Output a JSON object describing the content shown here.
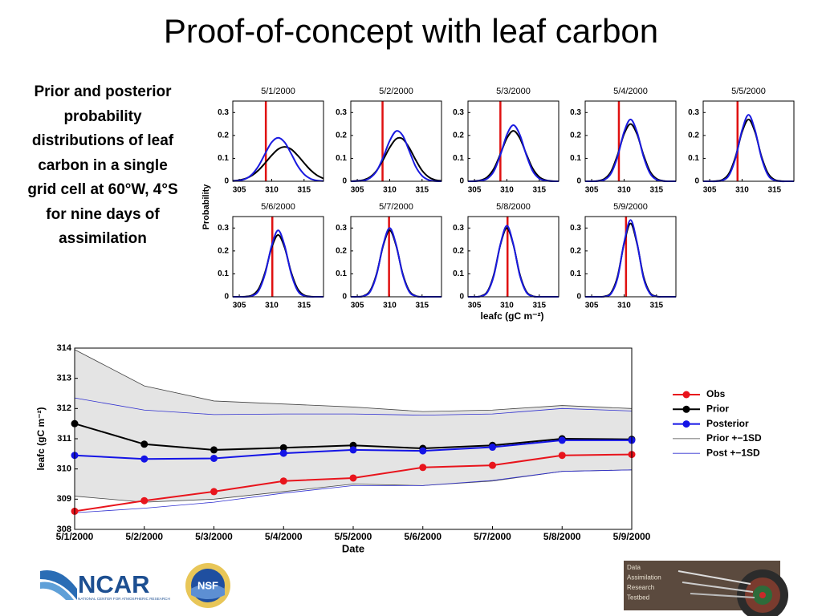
{
  "title": "Proof-of-concept with leaf carbon",
  "description": "Prior and posterior probability distributions of leaf carbon in a single grid cell at 60°W, 4°S for nine days of assimilation",
  "logos": {
    "ncar": "NCAR",
    "ncar_subtitle": "NATIONAL CENTER FOR ATMOSPHERIC RESEARCH",
    "nsf": "NSF",
    "dart": [
      "Data",
      "Assimilation",
      "Research",
      "Testbed"
    ]
  },
  "chart_data": [
    {
      "type": "density-grid",
      "ylabel": "Probability",
      "xlabel": "leafc (gC m⁻²)",
      "x": [
        304,
        305,
        306,
        307,
        308,
        309,
        310,
        311,
        312,
        313,
        314,
        315,
        316,
        317,
        318
      ],
      "xlim": [
        304,
        318
      ],
      "ylim": [
        0,
        0.35
      ],
      "xticks": [
        305,
        310,
        315
      ],
      "yticks": [
        0,
        0.1,
        0.2,
        0.3
      ],
      "curve_colors": [
        "#000000",
        "#1a1ae0"
      ],
      "obs_color": "#e01010",
      "panels": [
        {
          "title": "5/1/2000",
          "obs": 309.1,
          "curves": [
            [
              0.002,
              0.005,
              0.012,
              0.026,
              0.049,
              0.08,
              0.113,
              0.14,
              0.15,
              0.14,
              0.113,
              0.08,
              0.049,
              0.026,
              0.012
            ],
            [
              0.001,
              0.003,
              0.011,
              0.031,
              0.068,
              0.121,
              0.17,
              0.19,
              0.17,
              0.121,
              0.068,
              0.031,
              0.011,
              0.003,
              0.001
            ]
          ]
        },
        {
          "title": "5/2/2000",
          "obs": 308.9,
          "curves": [
            [
              0,
              0.002,
              0.006,
              0.019,
              0.047,
              0.094,
              0.147,
              0.185,
              0.185,
              0.147,
              0.094,
              0.047,
              0.019,
              0.006,
              0.002
            ],
            [
              0,
              0.001,
              0.003,
              0.015,
              0.045,
              0.105,
              0.176,
              0.219,
              0.2,
              0.134,
              0.065,
              0.024,
              0.006,
              0.001,
              0
            ]
          ]
        },
        {
          "title": "5/3/2000",
          "obs": 309,
          "curves": [
            [
              0,
              0.001,
              0.005,
              0.019,
              0.055,
              0.119,
              0.188,
              0.22,
              0.188,
              0.119,
              0.055,
              0.019,
              0.005,
              0.001,
              0
            ],
            [
              0,
              0,
              0.003,
              0.012,
              0.044,
              0.115,
              0.203,
              0.245,
              0.203,
              0.115,
              0.044,
              0.012,
              0.003,
              0,
              0
            ]
          ]
        },
        {
          "title": "5/4/2000",
          "obs": 309.2,
          "curves": [
            [
              0,
              0,
              0.002,
              0.011,
              0.043,
              0.115,
              0.206,
              0.25,
              0.206,
              0.115,
              0.043,
              0.011,
              0.002,
              0,
              0
            ],
            [
              0,
              0,
              0.001,
              0.007,
              0.035,
              0.108,
              0.215,
              0.27,
              0.215,
              0.108,
              0.035,
              0.007,
              0.001,
              0,
              0
            ]
          ]
        },
        {
          "title": "5/5/2000",
          "obs": 309.3,
          "curves": [
            [
              0,
              0,
              0.001,
              0.007,
              0.035,
              0.108,
              0.215,
              0.27,
              0.215,
              0.108,
              0.035,
              0.007,
              0.001,
              0,
              0
            ],
            [
              0,
              0,
              0,
              0.004,
              0.027,
              0.102,
              0.223,
              0.29,
              0.223,
              0.102,
              0.027,
              0.004,
              0,
              0,
              0
            ]
          ]
        },
        {
          "title": "5/6/2000",
          "obs": 310.1,
          "curves": [
            [
              0,
              0,
              0.001,
              0.007,
              0.035,
              0.108,
              0.215,
              0.27,
              0.215,
              0.108,
              0.035,
              0.007,
              0.001,
              0,
              0
            ],
            [
              0,
              0,
              0,
              0.004,
              0.027,
              0.102,
              0.223,
              0.29,
              0.223,
              0.102,
              0.027,
              0.004,
              0,
              0,
              0
            ]
          ]
        },
        {
          "title": "5/7/2000",
          "obs": 309.9,
          "curves": [
            [
              0,
              0,
              0.004,
              0.027,
              0.102,
              0.223,
              0.29,
              0.223,
              0.102,
              0.027,
              0.004,
              0,
              0,
              0,
              0
            ],
            [
              0,
              0,
              0.003,
              0.023,
              0.098,
              0.227,
              0.3,
              0.227,
              0.098,
              0.023,
              0.003,
              0,
              0,
              0,
              0
            ]
          ]
        },
        {
          "title": "5/8/2000",
          "obs": 310.1,
          "curves": [
            [
              0,
              0,
              0.003,
              0.023,
              0.098,
              0.227,
              0.3,
              0.227,
              0.098,
              0.023,
              0.003,
              0,
              0,
              0,
              0
            ],
            [
              0,
              0,
              0.002,
              0.02,
              0.093,
              0.229,
              0.31,
              0.229,
              0.093,
              0.02,
              0.002,
              0,
              0,
              0,
              0
            ]
          ]
        },
        {
          "title": "5/9/2000",
          "obs": 310.3,
          "curves": [
            [
              0,
              0,
              0,
              0.002,
              0.018,
              0.089,
              0.232,
              0.32,
              0.232,
              0.089,
              0.018,
              0.002,
              0,
              0,
              0
            ],
            [
              0,
              0,
              0,
              0.001,
              0.014,
              0.082,
              0.236,
              0.335,
              0.236,
              0.082,
              0.014,
              0.001,
              0,
              0,
              0
            ]
          ]
        }
      ]
    },
    {
      "type": "line",
      "xlabel": "Date",
      "ylabel": "leafc (gC m⁻²)",
      "legend": "right",
      "categories": [
        "5/1/2000",
        "5/2/2000",
        "5/3/2000",
        "5/4/2000",
        "5/5/2000",
        "5/6/2000",
        "5/7/2000",
        "5/8/2000",
        "5/9/2000"
      ],
      "ylim": [
        308,
        314
      ],
      "yticks": [
        308,
        309,
        310,
        311,
        312,
        313,
        314
      ],
      "band_fill": "#e4e4e4",
      "series": [
        {
          "name": "Obs",
          "color": "#e8141c",
          "values": [
            308.6,
            308.95,
            309.25,
            309.6,
            309.7,
            310.05,
            310.12,
            310.45,
            310.48
          ]
        },
        {
          "name": "Prior",
          "color": "#000000",
          "values": [
            311.5,
            310.82,
            310.63,
            310.7,
            310.78,
            310.68,
            310.78,
            311.0,
            310.98
          ]
        },
        {
          "name": "Posterior",
          "color": "#1414e6",
          "values": [
            310.45,
            310.33,
            310.35,
            310.52,
            310.63,
            310.6,
            310.72,
            310.95,
            310.95
          ]
        }
      ],
      "bands": [
        {
          "name": "Prior +−1SD",
          "color": "#444444",
          "upper": [
            313.95,
            312.75,
            312.25,
            312.15,
            312.05,
            311.9,
            311.95,
            312.1,
            312.0
          ],
          "lower": [
            309.1,
            308.9,
            309.0,
            309.25,
            309.5,
            309.45,
            309.6,
            309.92,
            309.97
          ]
        },
        {
          "name": "Post +−1SD",
          "color": "#3030d0",
          "upper": [
            312.35,
            311.95,
            311.8,
            311.82,
            311.82,
            311.78,
            311.82,
            312.0,
            311.92
          ],
          "lower": [
            308.55,
            308.7,
            308.9,
            309.2,
            309.45,
            309.45,
            309.62,
            309.92,
            309.97
          ]
        }
      ]
    }
  ]
}
